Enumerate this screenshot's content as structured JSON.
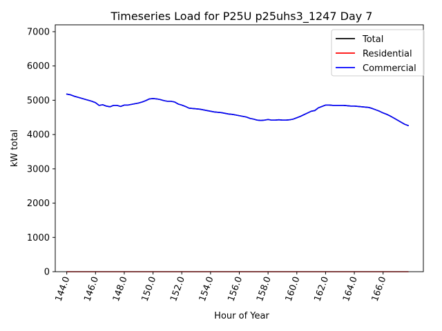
{
  "chart_data": {
    "type": "line",
    "title": "Timeseries Load for P25U p25uhs3_1247  Day 7",
    "xlabel": "Hour of Year",
    "ylabel": "kW total",
    "xlim": [
      143.2,
      168.8
    ],
    "ylim": [
      0,
      7200
    ],
    "x_ticks": [
      144,
      146,
      148,
      150,
      152,
      154,
      156,
      158,
      160,
      162,
      164,
      166
    ],
    "x_tick_labels": [
      "144.0",
      "146.0",
      "148.0",
      "150.0",
      "152.0",
      "154.0",
      "156.0",
      "158.0",
      "160.0",
      "162.0",
      "164.0",
      "166.0"
    ],
    "y_ticks": [
      0,
      1000,
      2000,
      3000,
      4000,
      5000,
      6000,
      7000
    ],
    "y_tick_labels": [
      "0",
      "1000",
      "2000",
      "3000",
      "4000",
      "5000",
      "6000",
      "7000"
    ],
    "legend_position": "top-right",
    "grid": false,
    "x": [
      144,
      144.25,
      144.5,
      144.75,
      145,
      145.25,
      145.5,
      145.75,
      146,
      146.25,
      146.5,
      146.75,
      147,
      147.25,
      147.5,
      147.75,
      148,
      148.25,
      148.5,
      148.75,
      149,
      149.25,
      149.5,
      149.75,
      150,
      150.25,
      150.5,
      150.75,
      151,
      151.25,
      151.5,
      151.75,
      152,
      152.25,
      152.5,
      152.75,
      153,
      153.25,
      153.5,
      153.75,
      154,
      154.25,
      154.5,
      154.75,
      155,
      155.25,
      155.5,
      155.75,
      156,
      156.25,
      156.5,
      156.75,
      157,
      157.25,
      157.5,
      157.75,
      158,
      158.25,
      158.5,
      158.75,
      159,
      159.25,
      159.5,
      159.75,
      160,
      160.25,
      160.5,
      160.75,
      161,
      161.25,
      161.5,
      161.75,
      162,
      162.25,
      162.5,
      162.75,
      163,
      163.25,
      163.5,
      163.75,
      164,
      164.25,
      164.5,
      164.75,
      165,
      165.25,
      165.5,
      165.75,
      166,
      166.25,
      166.5,
      166.75,
      167,
      167.25,
      167.5,
      167.75
    ],
    "series": [
      {
        "name": "Total",
        "color": "#000000",
        "values": [
          5180,
          5160,
          5120,
          5090,
          5060,
          5030,
          5000,
          4970,
          4930,
          4850,
          4870,
          4830,
          4810,
          4850,
          4850,
          4820,
          4860,
          4860,
          4880,
          4900,
          4920,
          4950,
          4990,
          5040,
          5050,
          5040,
          5020,
          4990,
          4970,
          4970,
          4950,
          4890,
          4860,
          4820,
          4770,
          4760,
          4750,
          4740,
          4720,
          4700,
          4680,
          4660,
          4650,
          4640,
          4620,
          4600,
          4590,
          4570,
          4550,
          4530,
          4510,
          4470,
          4450,
          4420,
          4410,
          4420,
          4440,
          4420,
          4420,
          4430,
          4420,
          4420,
          4430,
          4450,
          4490,
          4530,
          4580,
          4630,
          4680,
          4700,
          4780,
          4820,
          4860,
          4860,
          4850,
          4850,
          4850,
          4850,
          4840,
          4830,
          4830,
          4820,
          4810,
          4800,
          4790,
          4760,
          4720,
          4680,
          4630,
          4590,
          4540,
          4480,
          4420,
          4360,
          4300,
          4260
        ]
      },
      {
        "name": "Residential",
        "color": "#ff0000",
        "values": [
          0,
          0,
          0,
          0,
          0,
          0,
          0,
          0,
          0,
          0,
          0,
          0,
          0,
          0,
          0,
          0,
          0,
          0,
          0,
          0,
          0,
          0,
          0,
          0,
          0,
          0,
          0,
          0,
          0,
          0,
          0,
          0,
          0,
          0,
          0,
          0,
          0,
          0,
          0,
          0,
          0,
          0,
          0,
          0,
          0,
          0,
          0,
          0,
          0,
          0,
          0,
          0,
          0,
          0,
          0,
          0,
          0,
          0,
          0,
          0,
          0,
          0,
          0,
          0,
          0,
          0,
          0,
          0,
          0,
          0,
          0,
          0,
          0,
          0,
          0,
          0,
          0,
          0,
          0,
          0,
          0,
          0,
          0,
          0,
          0,
          0,
          0,
          0,
          0,
          0,
          0,
          0,
          0,
          0,
          0,
          0
        ]
      },
      {
        "name": "Commercial",
        "color": "#0000ff",
        "values": [
          5180,
          5160,
          5120,
          5090,
          5060,
          5030,
          5000,
          4970,
          4930,
          4850,
          4870,
          4830,
          4810,
          4850,
          4850,
          4820,
          4860,
          4860,
          4880,
          4900,
          4920,
          4950,
          4990,
          5040,
          5050,
          5040,
          5020,
          4990,
          4970,
          4970,
          4950,
          4890,
          4860,
          4820,
          4770,
          4760,
          4750,
          4740,
          4720,
          4700,
          4680,
          4660,
          4650,
          4640,
          4620,
          4600,
          4590,
          4570,
          4550,
          4530,
          4510,
          4470,
          4450,
          4420,
          4410,
          4420,
          4440,
          4420,
          4420,
          4430,
          4420,
          4420,
          4430,
          4450,
          4490,
          4530,
          4580,
          4630,
          4680,
          4700,
          4780,
          4820,
          4860,
          4860,
          4850,
          4850,
          4850,
          4850,
          4840,
          4830,
          4830,
          4820,
          4810,
          4800,
          4790,
          4760,
          4720,
          4680,
          4630,
          4590,
          4540,
          4480,
          4420,
          4360,
          4300,
          4260
        ]
      }
    ]
  }
}
